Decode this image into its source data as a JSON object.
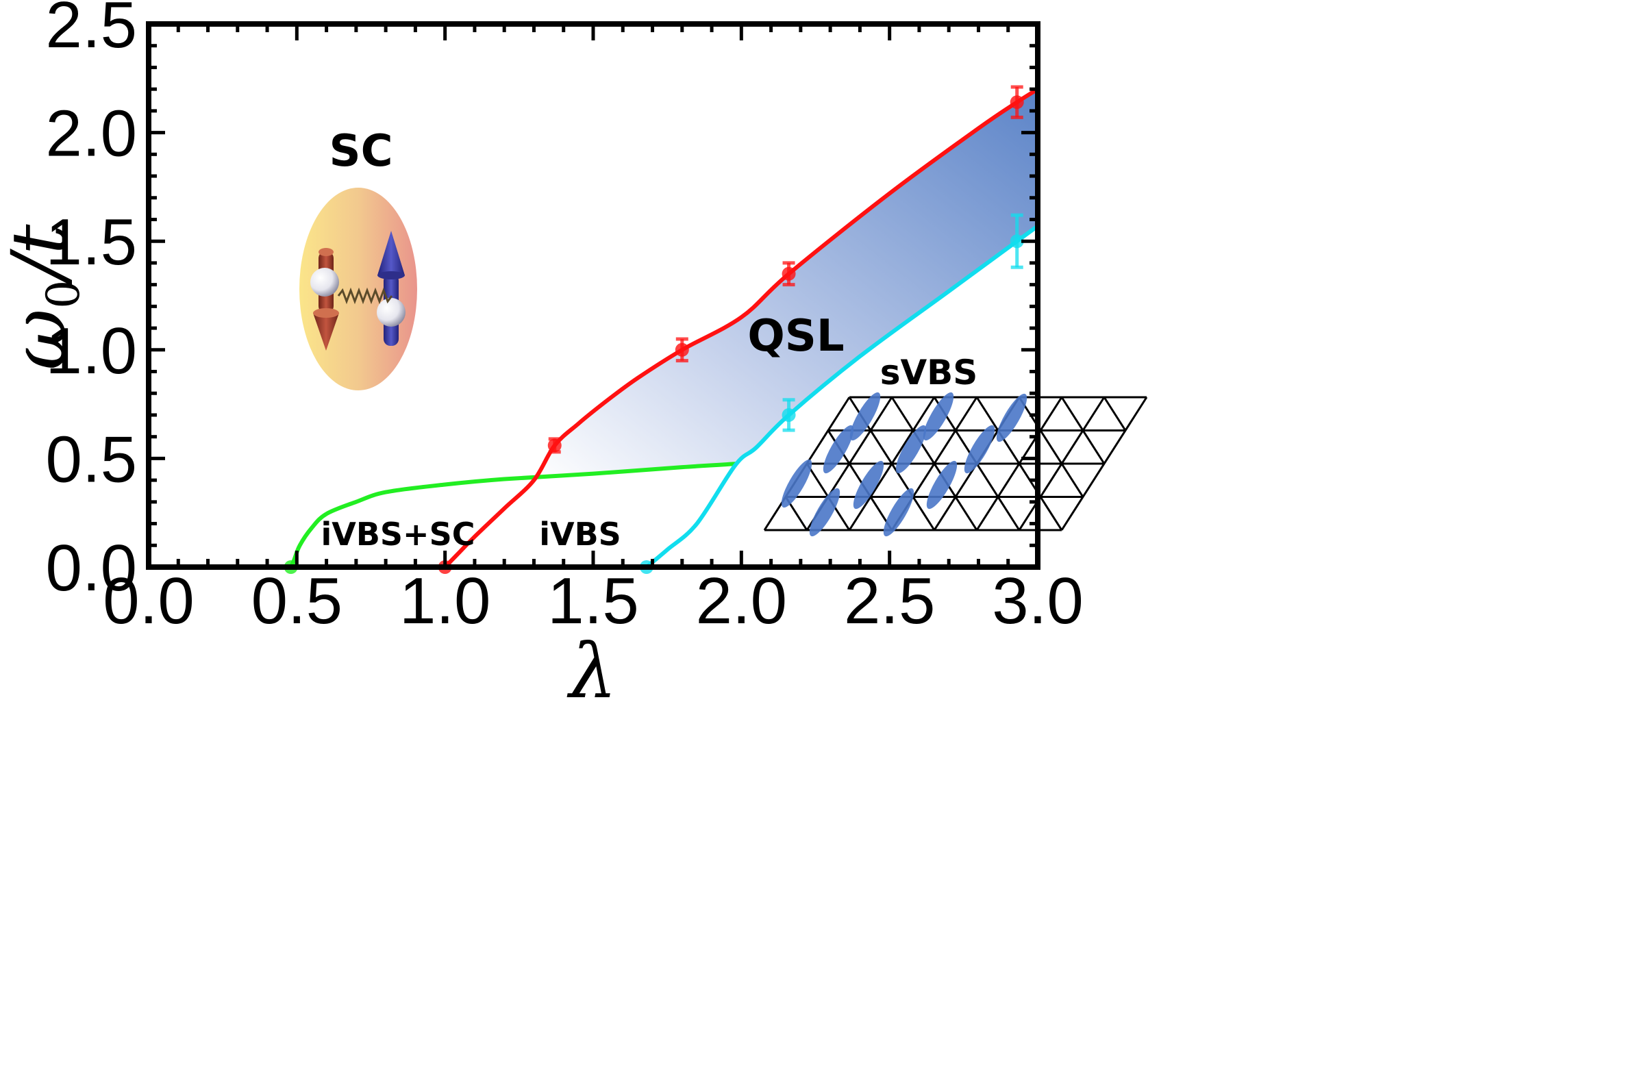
{
  "chart_data": {
    "type": "line",
    "title": "",
    "xlabel": "λ",
    "ylabel_symbol": "ω",
    "ylabel_subscript": "0",
    "ylabel_suffix": "/t",
    "xlim": [
      0.0,
      3.0
    ],
    "ylim": [
      0.0,
      2.5
    ],
    "x_ticks": [
      "0.0",
      "0.5",
      "1.0",
      "1.5",
      "2.0",
      "2.5",
      "3.0"
    ],
    "y_ticks": [
      "0.0",
      "0.5",
      "1.0",
      "1.5",
      "2.0",
      "2.5"
    ],
    "grid": false,
    "series": [
      {
        "name": "SC / iVBS+SC boundary",
        "color": "#22ee22",
        "curve": [
          [
            0.48,
            0.0
          ],
          [
            0.49,
            0.03
          ],
          [
            0.51,
            0.1
          ],
          [
            0.55,
            0.18
          ],
          [
            0.6,
            0.245
          ],
          [
            0.7,
            0.3
          ],
          [
            0.8,
            0.345
          ],
          [
            1.0,
            0.38
          ],
          [
            1.2,
            0.405
          ],
          [
            1.5,
            0.43
          ],
          [
            1.8,
            0.46
          ],
          [
            1.98,
            0.475
          ]
        ],
        "points": [
          {
            "x": 0.48,
            "y": 0.0
          }
        ]
      },
      {
        "name": "upper QSL boundary (red)",
        "color": "#ff1111",
        "curve": [
          [
            1.0,
            0.0
          ],
          [
            1.05,
            0.07
          ],
          [
            1.1,
            0.14
          ],
          [
            1.2,
            0.27
          ],
          [
            1.3,
            0.4
          ],
          [
            1.37,
            0.56
          ],
          [
            1.45,
            0.66
          ],
          [
            1.55,
            0.77
          ],
          [
            1.65,
            0.87
          ],
          [
            1.8,
            1.0
          ],
          [
            2.0,
            1.15
          ],
          [
            2.16,
            1.35
          ],
          [
            2.5,
            1.72
          ],
          [
            2.8,
            2.02
          ],
          [
            2.93,
            2.14
          ],
          [
            3.0,
            2.2
          ]
        ],
        "points": [
          {
            "x": 1.0,
            "y": 0.0,
            "err": 0.0
          },
          {
            "x": 1.37,
            "y": 0.56,
            "err": 0.03
          },
          {
            "x": 1.8,
            "y": 1.0,
            "err": 0.05
          },
          {
            "x": 2.16,
            "y": 1.35,
            "err": 0.05
          },
          {
            "x": 2.93,
            "y": 2.14,
            "err": 0.07
          }
        ]
      },
      {
        "name": "lower QSL boundary (cyan)",
        "color": "#11ddee",
        "curve": [
          [
            1.68,
            0.0
          ],
          [
            1.75,
            0.08
          ],
          [
            1.85,
            0.2
          ],
          [
            1.98,
            0.47
          ],
          [
            2.05,
            0.55
          ],
          [
            2.16,
            0.7
          ],
          [
            2.4,
            0.97
          ],
          [
            2.7,
            1.27
          ],
          [
            2.93,
            1.5
          ],
          [
            3.0,
            1.57
          ]
        ],
        "points": [
          {
            "x": 1.68,
            "y": 0.0,
            "err": 0.0
          },
          {
            "x": 2.16,
            "y": 0.7,
            "err": 0.07
          },
          {
            "x": 2.93,
            "y": 1.5,
            "err": 0.12
          }
        ]
      }
    ],
    "annotations": [
      {
        "text": "SC",
        "x": 0.72,
        "y": 1.91
      },
      {
        "text": "QSL",
        "x": 2.26,
        "y": 1.04
      },
      {
        "text": "sVBS",
        "x": 2.67,
        "y": 0.86
      },
      {
        "text": "iVBS+SC",
        "x": 0.82,
        "y": 0.14
      },
      {
        "text": "iVBS",
        "x": 1.49,
        "y": 0.14
      }
    ]
  }
}
